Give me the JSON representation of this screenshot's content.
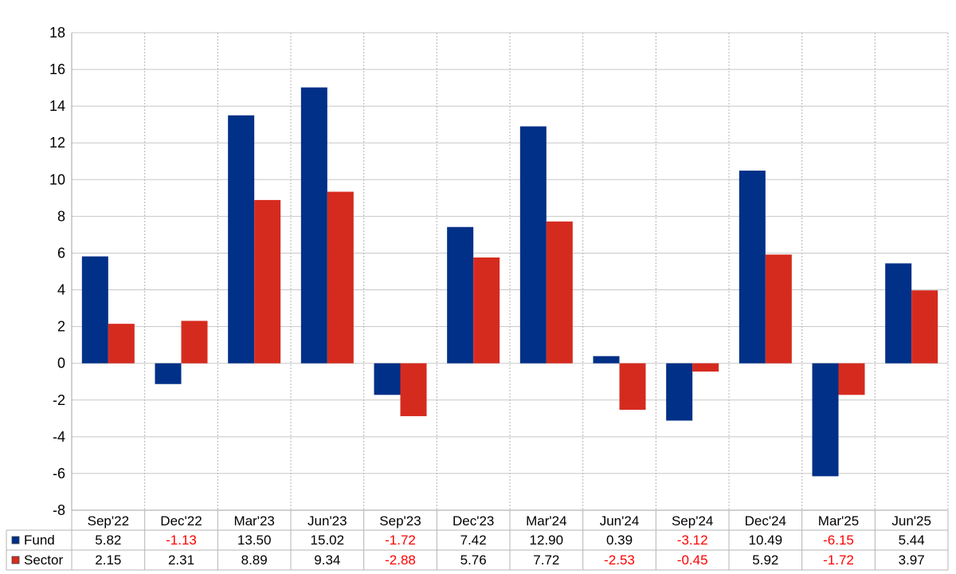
{
  "chart_data": {
    "type": "bar",
    "categories": [
      "Sep'22",
      "Dec'22",
      "Mar'23",
      "Jun'23",
      "Sep'23",
      "Dec'23",
      "Mar'24",
      "Jun'24",
      "Sep'24",
      "Dec'24",
      "Mar'25",
      "Jun'25"
    ],
    "series": [
      {
        "name": "Fund",
        "color": "#003087",
        "values": [
          5.82,
          -1.13,
          13.5,
          15.02,
          -1.72,
          7.42,
          12.9,
          0.39,
          -3.12,
          10.49,
          -6.15,
          5.44
        ],
        "labels": [
          "5.82",
          "-1.13",
          "13.50",
          "15.02",
          "-1.72",
          "7.42",
          "12.90",
          "0.39",
          "-3.12",
          "10.49",
          "-6.15",
          "5.44"
        ]
      },
      {
        "name": "Sector",
        "color": "#d52b1e",
        "values": [
          2.15,
          2.31,
          8.89,
          9.34,
          -2.88,
          5.76,
          7.72,
          -2.53,
          -0.45,
          5.92,
          -1.72,
          3.97
        ],
        "labels": [
          "2.15",
          "2.31",
          "8.89",
          "9.34",
          "-2.88",
          "5.76",
          "7.72",
          "-2.53",
          "-0.45",
          "5.92",
          "-1.72",
          "3.97"
        ]
      }
    ],
    "yticks": [
      "18",
      "16",
      "14",
      "12",
      "10",
      "8",
      "6",
      "4",
      "2",
      "0",
      "-2",
      "-4",
      "-6",
      "-8"
    ],
    "ylim": [
      -8,
      18
    ],
    "grid": true,
    "legend": "data table rows below chart",
    "negative_value_color": "#ff0000"
  }
}
